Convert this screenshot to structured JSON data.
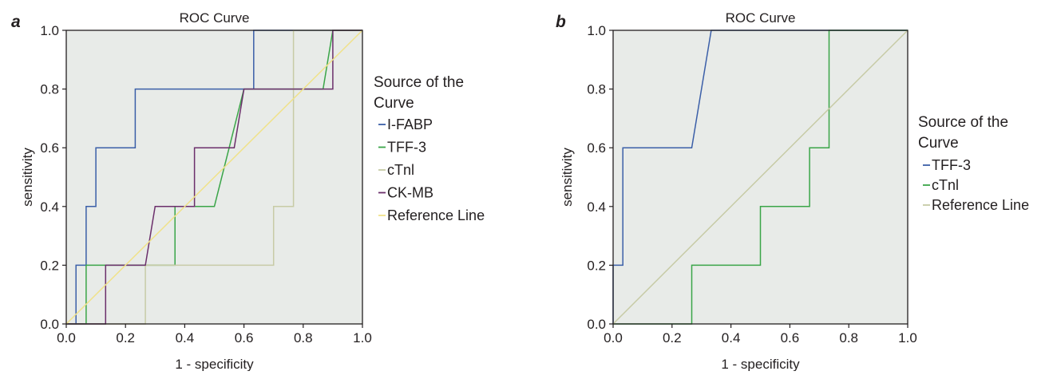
{
  "chart_data": [
    {
      "type": "line",
      "panel_label": "a",
      "title": "ROC Curve",
      "xlabel": "1 - specificity",
      "ylabel": "sensitivity",
      "xlim": [
        0,
        1
      ],
      "ylim": [
        0,
        1
      ],
      "xticks": [
        "0.0",
        "0.2",
        "0.4",
        "0.6",
        "0.8",
        "1.0"
      ],
      "yticks": [
        "0.0",
        "0.2",
        "0.4",
        "0.6",
        "0.8",
        "1.0"
      ],
      "grid": false,
      "background": "#e8ebe8",
      "legend": {
        "title_lines": [
          "Source of the",
          "Curve"
        ],
        "position": "right"
      },
      "series": [
        {
          "name": "I-FABP",
          "color": "#3b5fa8",
          "x": [
            0,
            0.033,
            0.033,
            0.067,
            0.067,
            0.1,
            0.1,
            0.233,
            0.233,
            0.633,
            0.633,
            1.0
          ],
          "y": [
            0,
            0,
            0.2,
            0.2,
            0.4,
            0.4,
            0.6,
            0.6,
            0.8,
            0.8,
            1.0,
            1.0
          ]
        },
        {
          "name": "TFF-3",
          "color": "#3aa548",
          "x": [
            0,
            0.067,
            0.067,
            0.367,
            0.367,
            0.5,
            0.6,
            0.867,
            0.9,
            1.0
          ],
          "y": [
            0,
            0,
            0.2,
            0.2,
            0.4,
            0.4,
            0.8,
            0.8,
            1.0,
            1.0
          ]
        },
        {
          "name": "cTnl",
          "color": "#c7cba6",
          "x": [
            0,
            0.267,
            0.267,
            0.7,
            0.7,
            0.767,
            0.767,
            1.0
          ],
          "y": [
            0,
            0,
            0.2,
            0.2,
            0.4,
            0.4,
            1.0,
            1.0
          ]
        },
        {
          "name": "CK-MB",
          "color": "#6b2f6b",
          "x": [
            0,
            0.133,
            0.133,
            0.267,
            0.3,
            0.433,
            0.433,
            0.567,
            0.6,
            0.9,
            0.9,
            1.0
          ],
          "y": [
            0,
            0,
            0.2,
            0.2,
            0.4,
            0.4,
            0.6,
            0.6,
            0.8,
            0.8,
            1.0,
            1.0
          ]
        },
        {
          "name": "Reference Line",
          "color": "#f0e28a",
          "x": [
            0,
            1
          ],
          "y": [
            0,
            1
          ]
        }
      ]
    },
    {
      "type": "line",
      "panel_label": "b",
      "title": "ROC Curve",
      "xlabel": "1 - specificity",
      "ylabel": "sensitivity",
      "xlim": [
        0,
        1
      ],
      "ylim": [
        0,
        1
      ],
      "xticks": [
        "0.0",
        "0.2",
        "0.4",
        "0.6",
        "0.8",
        "1.0"
      ],
      "yticks": [
        "0.0",
        "0.2",
        "0.4",
        "0.6",
        "0.8",
        "1.0"
      ],
      "grid": false,
      "background": "#e8ebe8",
      "legend": {
        "title_lines": [
          "Source of the",
          "Curve"
        ],
        "position": "right"
      },
      "series": [
        {
          "name": "TFF-3",
          "color": "#3b5fa8",
          "x": [
            0,
            0,
            0.033,
            0.033,
            0.267,
            0.333,
            1.0
          ],
          "y": [
            0,
            0.2,
            0.2,
            0.6,
            0.6,
            1.0,
            1.0
          ]
        },
        {
          "name": "cTnl",
          "color": "#3aa548",
          "x": [
            0,
            0.267,
            0.267,
            0.5,
            0.5,
            0.667,
            0.667,
            0.733,
            0.733,
            1.0
          ],
          "y": [
            0,
            0,
            0.2,
            0.2,
            0.4,
            0.4,
            0.6,
            0.6,
            1.0,
            1.0
          ]
        },
        {
          "name": "Reference Line",
          "color": "#c7cba6",
          "x": [
            0,
            1
          ],
          "y": [
            0,
            1
          ]
        }
      ]
    }
  ]
}
